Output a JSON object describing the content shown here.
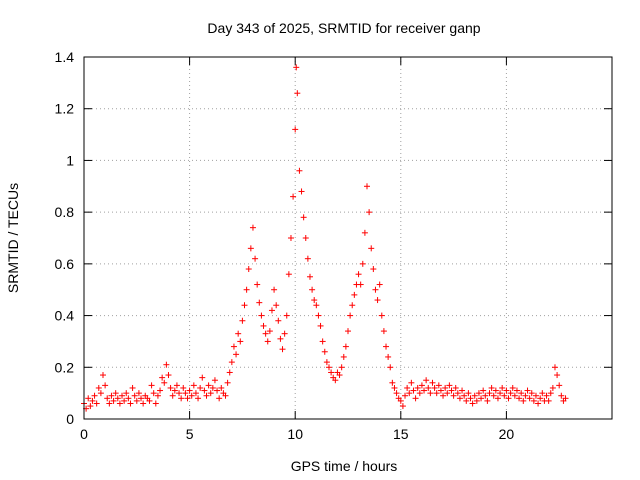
{
  "chart_data": {
    "type": "scatter",
    "title": "Day 343 of 2025, SRMTID for receiver ganp",
    "xlabel": "GPS time / hours",
    "ylabel": "SRMTID / TECUs",
    "xlim": [
      0,
      25
    ],
    "ylim": [
      0,
      1.4
    ],
    "xticks": [
      0,
      5,
      10,
      15,
      20
    ],
    "xtick_labels": [
      "0",
      "5",
      "10",
      "15",
      "20"
    ],
    "yticks": [
      0,
      0.2,
      0.4,
      0.6,
      0.8,
      1,
      1.2,
      1.4
    ],
    "ytick_labels": [
      "0",
      "0.2",
      "0.4",
      "0.6",
      "0.8",
      "1",
      "1.2",
      "1.4"
    ],
    "grid": true,
    "marker": "+",
    "series": [
      {
        "name": "SRMTID",
        "color": "#ff0000",
        "points": [
          [
            0.0,
            0.06
          ],
          [
            0.1,
            0.04
          ],
          [
            0.2,
            0.08
          ],
          [
            0.3,
            0.05
          ],
          [
            0.4,
            0.07
          ],
          [
            0.5,
            0.09
          ],
          [
            0.6,
            0.06
          ],
          [
            0.7,
            0.12
          ],
          [
            0.8,
            0.1
          ],
          [
            0.9,
            0.17
          ],
          [
            1.0,
            0.13
          ],
          [
            1.1,
            0.08
          ],
          [
            1.2,
            0.06
          ],
          [
            1.3,
            0.09
          ],
          [
            1.4,
            0.07
          ],
          [
            1.5,
            0.1
          ],
          [
            1.6,
            0.08
          ],
          [
            1.7,
            0.06
          ],
          [
            1.8,
            0.09
          ],
          [
            1.9,
            0.07
          ],
          [
            2.0,
            0.1
          ],
          [
            2.1,
            0.08
          ],
          [
            2.2,
            0.06
          ],
          [
            2.3,
            0.12
          ],
          [
            2.4,
            0.09
          ],
          [
            2.5,
            0.07
          ],
          [
            2.6,
            0.1
          ],
          [
            2.7,
            0.08
          ],
          [
            2.8,
            0.06
          ],
          [
            2.9,
            0.09
          ],
          [
            3.0,
            0.08
          ],
          [
            3.1,
            0.07
          ],
          [
            3.2,
            0.13
          ],
          [
            3.3,
            0.1
          ],
          [
            3.4,
            0.06
          ],
          [
            3.5,
            0.09
          ],
          [
            3.6,
            0.11
          ],
          [
            3.7,
            0.16
          ],
          [
            3.8,
            0.14
          ],
          [
            3.9,
            0.21
          ],
          [
            4.0,
            0.17
          ],
          [
            4.1,
            0.12
          ],
          [
            4.2,
            0.09
          ],
          [
            4.3,
            0.11
          ],
          [
            4.4,
            0.13
          ],
          [
            4.5,
            0.1
          ],
          [
            4.6,
            0.08
          ],
          [
            4.7,
            0.12
          ],
          [
            4.8,
            0.1
          ],
          [
            4.9,
            0.08
          ],
          [
            5.0,
            0.11
          ],
          [
            5.1,
            0.09
          ],
          [
            5.2,
            0.13
          ],
          [
            5.3,
            0.1
          ],
          [
            5.4,
            0.08
          ],
          [
            5.5,
            0.12
          ],
          [
            5.6,
            0.16
          ],
          [
            5.7,
            0.11
          ],
          [
            5.8,
            0.09
          ],
          [
            5.9,
            0.13
          ],
          [
            6.0,
            0.1
          ],
          [
            6.1,
            0.12
          ],
          [
            6.2,
            0.15
          ],
          [
            6.3,
            0.11
          ],
          [
            6.4,
            0.08
          ],
          [
            6.5,
            0.12
          ],
          [
            6.6,
            0.1
          ],
          [
            6.7,
            0.09
          ],
          [
            6.8,
            0.14
          ],
          [
            6.9,
            0.18
          ],
          [
            7.0,
            0.22
          ],
          [
            7.1,
            0.28
          ],
          [
            7.2,
            0.25
          ],
          [
            7.3,
            0.33
          ],
          [
            7.4,
            0.3
          ],
          [
            7.5,
            0.38
          ],
          [
            7.6,
            0.44
          ],
          [
            7.7,
            0.5
          ],
          [
            7.8,
            0.58
          ],
          [
            7.9,
            0.66
          ],
          [
            8.0,
            0.74
          ],
          [
            8.1,
            0.62
          ],
          [
            8.2,
            0.52
          ],
          [
            8.3,
            0.45
          ],
          [
            8.4,
            0.4
          ],
          [
            8.5,
            0.36
          ],
          [
            8.6,
            0.33
          ],
          [
            8.7,
            0.3
          ],
          [
            8.8,
            0.34
          ],
          [
            8.9,
            0.42
          ],
          [
            9.0,
            0.5
          ],
          [
            9.1,
            0.44
          ],
          [
            9.2,
            0.38
          ],
          [
            9.3,
            0.31
          ],
          [
            9.4,
            0.27
          ],
          [
            9.5,
            0.33
          ],
          [
            9.6,
            0.4
          ],
          [
            9.7,
            0.56
          ],
          [
            9.8,
            0.7
          ],
          [
            9.9,
            0.86
          ],
          [
            10.0,
            1.12
          ],
          [
            10.05,
            1.36
          ],
          [
            10.1,
            1.26
          ],
          [
            10.2,
            0.96
          ],
          [
            10.3,
            0.88
          ],
          [
            10.4,
            0.78
          ],
          [
            10.5,
            0.7
          ],
          [
            10.6,
            0.62
          ],
          [
            10.7,
            0.55
          ],
          [
            10.8,
            0.5
          ],
          [
            10.9,
            0.46
          ],
          [
            11.0,
            0.44
          ],
          [
            11.1,
            0.4
          ],
          [
            11.2,
            0.36
          ],
          [
            11.3,
            0.3
          ],
          [
            11.4,
            0.26
          ],
          [
            11.5,
            0.22
          ],
          [
            11.6,
            0.2
          ],
          [
            11.7,
            0.18
          ],
          [
            11.8,
            0.16
          ],
          [
            11.9,
            0.15
          ],
          [
            12.0,
            0.18
          ],
          [
            12.1,
            0.17
          ],
          [
            12.2,
            0.2
          ],
          [
            12.3,
            0.24
          ],
          [
            12.4,
            0.28
          ],
          [
            12.5,
            0.34
          ],
          [
            12.6,
            0.4
          ],
          [
            12.7,
            0.44
          ],
          [
            12.8,
            0.48
          ],
          [
            12.9,
            0.52
          ],
          [
            13.0,
            0.56
          ],
          [
            13.1,
            0.52
          ],
          [
            13.2,
            0.6
          ],
          [
            13.3,
            0.72
          ],
          [
            13.4,
            0.9
          ],
          [
            13.5,
            0.8
          ],
          [
            13.6,
            0.66
          ],
          [
            13.7,
            0.58
          ],
          [
            13.8,
            0.5
          ],
          [
            13.9,
            0.46
          ],
          [
            14.0,
            0.52
          ],
          [
            14.1,
            0.4
          ],
          [
            14.2,
            0.34
          ],
          [
            14.3,
            0.28
          ],
          [
            14.4,
            0.24
          ],
          [
            14.5,
            0.2
          ],
          [
            14.6,
            0.14
          ],
          [
            14.7,
            0.12
          ],
          [
            14.8,
            0.1
          ],
          [
            14.9,
            0.08
          ],
          [
            15.0,
            0.07
          ],
          [
            15.1,
            0.05
          ],
          [
            15.2,
            0.09
          ],
          [
            15.3,
            0.12
          ],
          [
            15.4,
            0.1
          ],
          [
            15.5,
            0.14
          ],
          [
            15.6,
            0.11
          ],
          [
            15.7,
            0.08
          ],
          [
            15.8,
            0.12
          ],
          [
            15.9,
            0.1
          ],
          [
            16.0,
            0.13
          ],
          [
            16.1,
            0.11
          ],
          [
            16.2,
            0.15
          ],
          [
            16.3,
            0.12
          ],
          [
            16.4,
            0.1
          ],
          [
            16.5,
            0.14
          ],
          [
            16.6,
            0.12
          ],
          [
            16.7,
            0.1
          ],
          [
            16.8,
            0.13
          ],
          [
            16.9,
            0.11
          ],
          [
            17.0,
            0.09
          ],
          [
            17.1,
            0.12
          ],
          [
            17.2,
            0.1
          ],
          [
            17.3,
            0.13
          ],
          [
            17.4,
            0.11
          ],
          [
            17.5,
            0.09
          ],
          [
            17.6,
            0.12
          ],
          [
            17.7,
            0.1
          ],
          [
            17.8,
            0.08
          ],
          [
            17.9,
            0.11
          ],
          [
            18.0,
            0.09
          ],
          [
            18.1,
            0.07
          ],
          [
            18.2,
            0.1
          ],
          [
            18.3,
            0.08
          ],
          [
            18.4,
            0.06
          ],
          [
            18.5,
            0.09
          ],
          [
            18.6,
            0.07
          ],
          [
            18.7,
            0.1
          ],
          [
            18.8,
            0.08
          ],
          [
            18.9,
            0.11
          ],
          [
            19.0,
            0.09
          ],
          [
            19.1,
            0.07
          ],
          [
            19.2,
            0.1
          ],
          [
            19.3,
            0.12
          ],
          [
            19.4,
            0.09
          ],
          [
            19.5,
            0.11
          ],
          [
            19.6,
            0.08
          ],
          [
            19.7,
            0.1
          ],
          [
            19.8,
            0.12
          ],
          [
            19.9,
            0.09
          ],
          [
            20.0,
            0.11
          ],
          [
            20.1,
            0.08
          ],
          [
            20.2,
            0.1
          ],
          [
            20.3,
            0.12
          ],
          [
            20.4,
            0.09
          ],
          [
            20.5,
            0.11
          ],
          [
            20.6,
            0.08
          ],
          [
            20.7,
            0.1
          ],
          [
            20.8,
            0.07
          ],
          [
            20.9,
            0.09
          ],
          [
            21.0,
            0.11
          ],
          [
            21.1,
            0.08
          ],
          [
            21.2,
            0.1
          ],
          [
            21.3,
            0.07
          ],
          [
            21.4,
            0.09
          ],
          [
            21.5,
            0.06
          ],
          [
            21.6,
            0.08
          ],
          [
            21.7,
            0.1
          ],
          [
            21.8,
            0.07
          ],
          [
            21.9,
            0.09
          ],
          [
            22.0,
            0.07
          ],
          [
            22.1,
            0.1
          ],
          [
            22.2,
            0.12
          ],
          [
            22.3,
            0.2
          ],
          [
            22.4,
            0.17
          ],
          [
            22.5,
            0.13
          ],
          [
            22.6,
            0.09
          ],
          [
            22.7,
            0.07
          ],
          [
            22.8,
            0.08
          ]
        ]
      }
    ]
  }
}
